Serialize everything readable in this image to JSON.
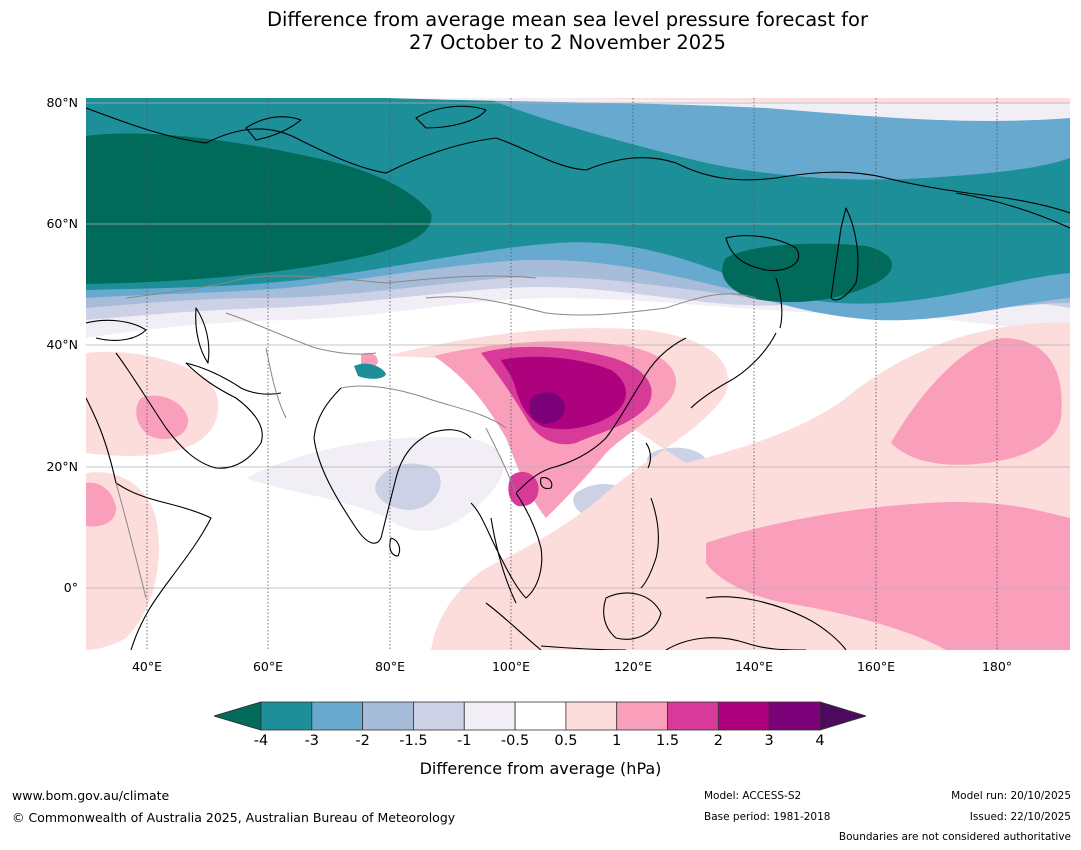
{
  "title_line1": "Difference from average mean sea level pressure forecast for",
  "title_line2": "27 October to 2 November 2025",
  "map": {
    "lon_range": [
      30,
      192
    ],
    "lat_range": [
      -10,
      80.5
    ],
    "lat_ticks": [
      {
        "value": 80,
        "label": "80°N"
      },
      {
        "value": 60,
        "label": "60°N"
      },
      {
        "value": 40,
        "label": "40°N"
      },
      {
        "value": 20,
        "label": "20°N"
      },
      {
        "value": 0,
        "label": "0°"
      }
    ],
    "lon_ticks": [
      {
        "value": 40,
        "label": "40°E"
      },
      {
        "value": 60,
        "label": "60°E"
      },
      {
        "value": 80,
        "label": "80°E"
      },
      {
        "value": 100,
        "label": "100°E"
      },
      {
        "value": 120,
        "label": "120°E"
      },
      {
        "value": 140,
        "label": "140°E"
      },
      {
        "value": 160,
        "label": "160°E"
      },
      {
        "value": 180,
        "label": "180°"
      }
    ]
  },
  "colorbar": {
    "levels": [
      "-4",
      "-3",
      "-2",
      "-1.5",
      "-1",
      "-0.5",
      "0.5",
      "1",
      "1.5",
      "2",
      "3",
      "4"
    ],
    "under_color": "#006b5a",
    "over_color": "#4d0a5e",
    "colors": [
      "#1c8f99",
      "#67a9cf",
      "#a6bcd8",
      "#cdd1e6",
      "#f1eef6",
      "#ffffff",
      "#fddcdc",
      "#f99fbb",
      "#d83a9a",
      "#ae017e",
      "#7a0177"
    ],
    "label": "Difference from average (hPa)"
  },
  "footer": {
    "website": "www.bom.gov.au/climate",
    "copyright": "© Commonwealth of Australia 2025, Australian Bureau of Meteorology",
    "model": "Model: ACCESS-S2",
    "base_period": "Base period: 1981-2018",
    "model_run": "Model run: 20/10/2025",
    "issued": "Issued: 22/10/2025",
    "disclaimer": "Boundaries are not considered authoritative"
  }
}
